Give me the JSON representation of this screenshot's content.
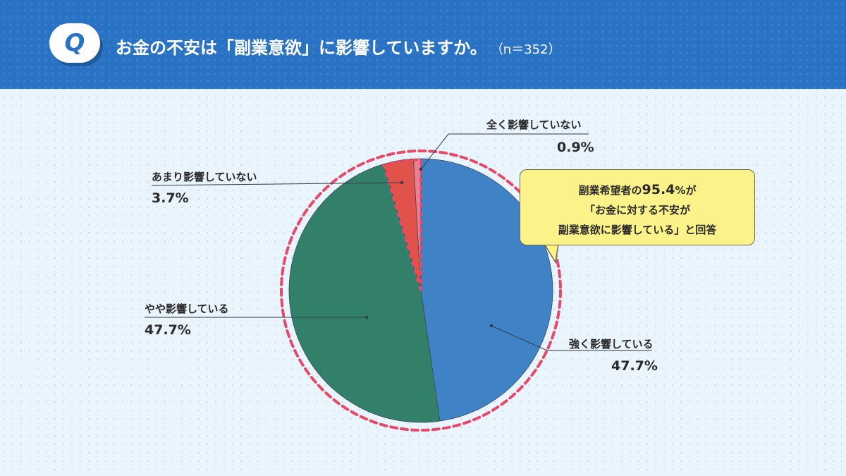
{
  "header": {
    "badge": "Q",
    "title": "お金の不安は「副業意欲」に影響していますか。",
    "sample": "（n＝352）"
  },
  "callout": {
    "line1_pre": "副業希望者の",
    "line1_big": "95.4",
    "line1_post": "%が",
    "line2": "「お金に対する不安が",
    "line3": "副業意欲に影響している」と回答"
  },
  "colors": {
    "header_bg": "#2a73c4",
    "strong": "#3f83c6",
    "some": "#33806a",
    "little": "#e0524a",
    "none": "#f07c92",
    "dashed_ring": "#e64a6a",
    "callout_bg": "#fbf38a"
  },
  "chart_data": {
    "type": "pie",
    "start": "12 o'clock, clockwise",
    "slices": [
      {
        "label": "強く影響している",
        "value": 47.7,
        "value_label": "47.7%",
        "color": "#3f83c6"
      },
      {
        "label": "やや影響している",
        "value": 47.7,
        "value_label": "47.7%",
        "color": "#33806a"
      },
      {
        "label": "あまり影響していない",
        "value": 3.7,
        "value_label": "3.7%",
        "color": "#e0524a"
      },
      {
        "label": "全く影響していない",
        "value": 0.9,
        "value_label": "0.9%",
        "color": "#f07c92"
      }
    ]
  }
}
